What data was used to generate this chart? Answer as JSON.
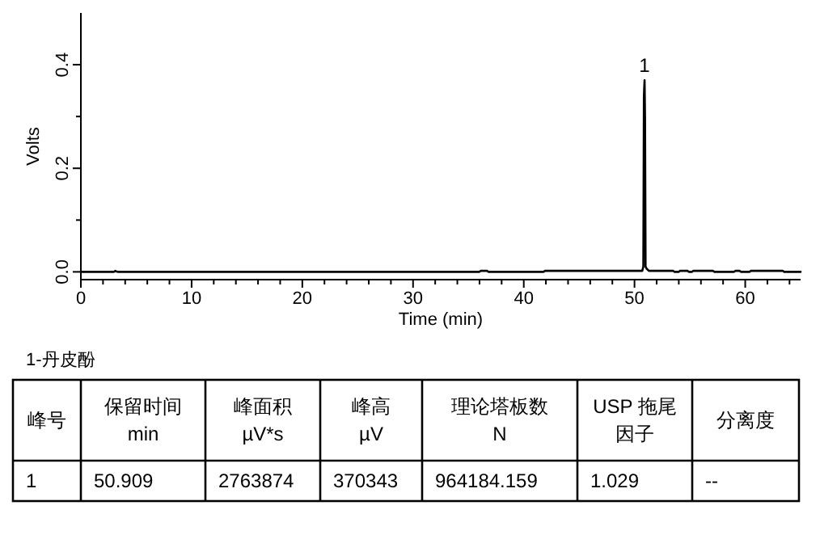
{
  "chart_data": {
    "type": "line",
    "xlabel": "Time (min)",
    "ylabel": "Volts",
    "x": [
      0,
      3,
      3.1,
      3.3,
      36,
      36.1,
      36.7,
      36.8,
      41.8,
      41.9,
      50.7,
      50.8,
      50.85,
      50.909,
      50.95,
      51.0,
      51.1,
      51.3,
      53.5,
      53.6,
      54.0,
      54.1,
      54.8,
      54.9,
      55.2,
      55.3,
      56,
      56.1,
      57.1,
      57.2,
      59,
      59.1,
      59.5,
      59.6,
      60.4,
      60.5,
      63.4,
      63.5,
      65
    ],
    "series": [
      {
        "color": "#000000",
        "values": [
          0,
          0,
          0.002,
          0,
          0,
          0.002,
          0.002,
          0,
          0,
          0.002,
          0.002,
          0.01,
          0.34,
          0.37,
          0.3,
          0.01,
          0.006,
          0.002,
          0.002,
          0,
          0,
          0.002,
          0.002,
          0,
          0,
          0.002,
          0.002,
          0.002,
          0.002,
          0,
          0,
          0.002,
          0.002,
          0,
          0,
          0.002,
          0.002,
          0,
          0
        ]
      }
    ],
    "xlim": [
      0,
      65
    ],
    "ylim": [
      -0.015,
      0.5
    ],
    "xticks": [
      0,
      {
        "value": 2,
        "label": null
      },
      {
        "value": 4,
        "label": null
      },
      {
        "value": 6,
        "label": null
      },
      {
        "value": 8,
        "label": null
      },
      10,
      {
        "value": 12,
        "label": null
      },
      {
        "value": 14,
        "label": null
      },
      {
        "value": 16,
        "label": null
      },
      {
        "value": 18,
        "label": null
      },
      20,
      {
        "value": 22,
        "label": null
      },
      {
        "value": 24,
        "label": null
      },
      {
        "value": 26,
        "label": null
      },
      {
        "value": 28,
        "label": null
      },
      30,
      {
        "value": 32,
        "label": null
      },
      {
        "value": 34,
        "label": null
      },
      {
        "value": 36,
        "label": null
      },
      {
        "value": 38,
        "label": null
      },
      40,
      {
        "value": 42,
        "label": null
      },
      {
        "value": 44,
        "label": null
      },
      {
        "value": 46,
        "label": null
      },
      {
        "value": 48,
        "label": null
      },
      50,
      {
        "value": 52,
        "label": null
      },
      {
        "value": 54,
        "label": null
      },
      {
        "value": 56,
        "label": null
      },
      {
        "value": 58,
        "label": null
      },
      60,
      {
        "value": 62,
        "label": null
      },
      {
        "value": 64,
        "label": null
      }
    ],
    "yticks": [
      {
        "value": 0,
        "label": "0.0"
      },
      {
        "value": 0.1,
        "label": null
      },
      0.2,
      {
        "value": 0.3,
        "label": null
      },
      0.4
    ],
    "grid": false,
    "annotations": [
      {
        "text": "1",
        "x": 50.909,
        "y": 0.37
      },
      "1-丹皮酚",
      "峰号",
      "保留时间\nmin",
      "峰面积\nµV*s",
      "峰高\nµV",
      "理论塔板数\nN",
      "USP 拖尾因子",
      "分离度",
      "1",
      "50.909",
      "2763874",
      "370343",
      "964184.159",
      "1.029",
      "--"
    ]
  }
}
